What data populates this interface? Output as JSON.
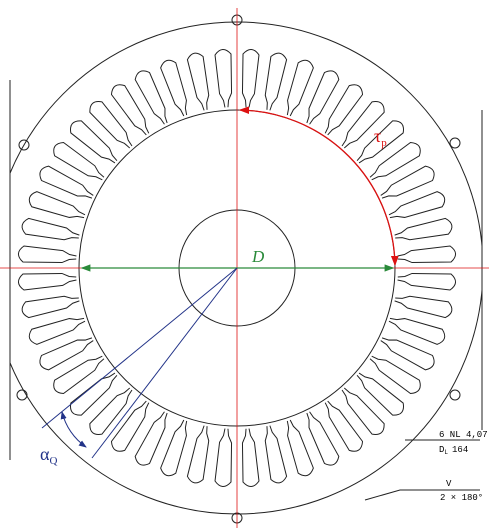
{
  "labels": {
    "diameter": "D",
    "pole_pitch": {
      "symbol": "τ",
      "subscript": "p"
    },
    "slot_angle": {
      "symbol": "α",
      "subscript": "Q"
    }
  },
  "annotations": {
    "slot_spec": "6 NL 4,07",
    "bore": {
      "symbol": "D",
      "subscript": "L",
      "value": "164"
    },
    "mark": "V",
    "sym": "2 × 180°"
  }
}
